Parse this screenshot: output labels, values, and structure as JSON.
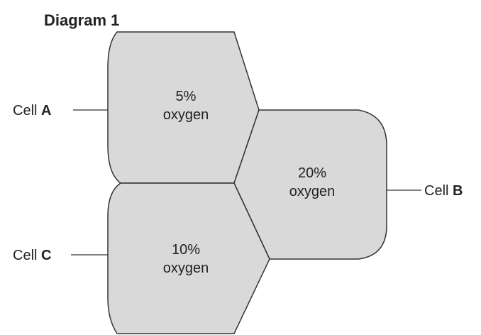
{
  "title": "Diagram 1",
  "cells": [
    {
      "prefix": "Cell",
      "letter": "A",
      "amount": "5%",
      "unit": "oxygen"
    },
    {
      "prefix": "Cell",
      "letter": "B",
      "amount": "20%",
      "unit": "oxygen"
    },
    {
      "prefix": "Cell",
      "letter": "C",
      "amount": "10%",
      "unit": "oxygen"
    }
  ]
}
